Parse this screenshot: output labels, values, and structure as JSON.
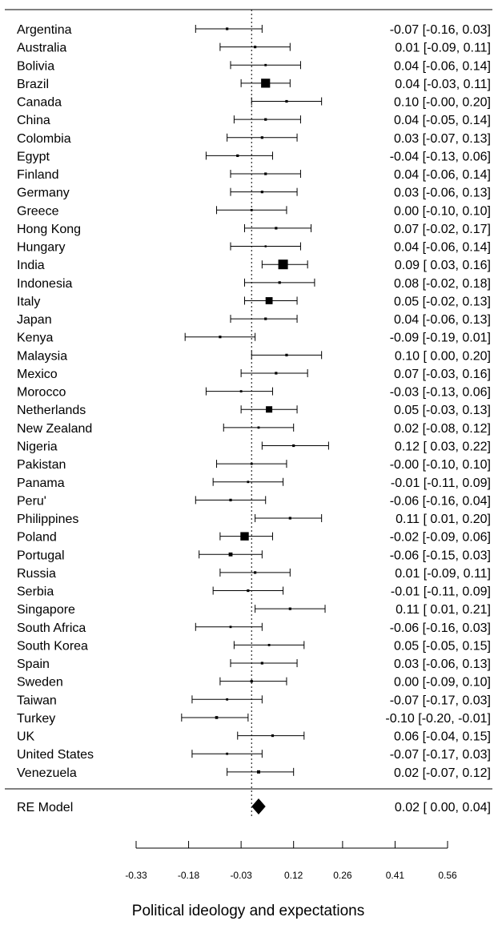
{
  "chart_data": {
    "type": "forest",
    "xlabel": "Political ideology and expectations",
    "xlim": [
      -0.33,
      0.56
    ],
    "xticks": [
      "-0.33",
      "-0.18",
      "-0.03",
      "0.12",
      "0.26",
      "0.41",
      "0.56"
    ],
    "xtick_values": [
      -0.33,
      -0.18,
      -0.03,
      0.12,
      0.26,
      0.41,
      0.56
    ],
    "reference_line": 0,
    "studies": [
      {
        "label": "Argentina",
        "est": -0.07,
        "lo": -0.16,
        "hi": 0.03,
        "text": "-0.07 [-0.16,  0.03]",
        "w": 0.8
      },
      {
        "label": "Australia",
        "est": 0.01,
        "lo": -0.09,
        "hi": 0.11,
        "text": "0.01 [-0.09,  0.11]",
        "w": 0.8
      },
      {
        "label": "Bolivia",
        "est": 0.04,
        "lo": -0.06,
        "hi": 0.14,
        "text": "0.04 [-0.06,  0.14]",
        "w": 0.7
      },
      {
        "label": "Brazil",
        "est": 0.04,
        "lo": -0.03,
        "hi": 0.11,
        "text": "0.04 [-0.03,  0.11]",
        "w": 2.8
      },
      {
        "label": "Canada",
        "est": 0.1,
        "lo": -0.0,
        "hi": 0.2,
        "text": "0.10 [-0.00,  0.20]",
        "w": 0.8
      },
      {
        "label": "China",
        "est": 0.04,
        "lo": -0.05,
        "hi": 0.14,
        "text": "0.04 [-0.05,  0.14]",
        "w": 0.8
      },
      {
        "label": "Colombia",
        "est": 0.03,
        "lo": -0.07,
        "hi": 0.13,
        "text": "0.03 [-0.07,  0.13]",
        "w": 0.8
      },
      {
        "label": "Egypt",
        "est": -0.04,
        "lo": -0.13,
        "hi": 0.06,
        "text": "-0.04 [-0.13,  0.06]",
        "w": 0.8
      },
      {
        "label": "Finland",
        "est": 0.04,
        "lo": -0.06,
        "hi": 0.14,
        "text": "0.04 [-0.06,  0.14]",
        "w": 0.8
      },
      {
        "label": "Germany",
        "est": 0.03,
        "lo": -0.06,
        "hi": 0.13,
        "text": "0.03 [-0.06,  0.13]",
        "w": 0.8
      },
      {
        "label": "Greece",
        "est": 0.0,
        "lo": -0.1,
        "hi": 0.1,
        "text": "0.00 [-0.10,  0.10]",
        "w": 0.7
      },
      {
        "label": "Hong Kong",
        "est": 0.07,
        "lo": -0.02,
        "hi": 0.17,
        "text": "0.07 [-0.02,  0.17]",
        "w": 0.8
      },
      {
        "label": "Hungary",
        "est": 0.04,
        "lo": -0.06,
        "hi": 0.14,
        "text": "0.04 [-0.06,  0.14]",
        "w": 0.6
      },
      {
        "label": "India",
        "est": 0.09,
        "lo": 0.03,
        "hi": 0.16,
        "text": "0.09 [ 0.03,  0.16]",
        "w": 3.0
      },
      {
        "label": "Indonesia",
        "est": 0.08,
        "lo": -0.02,
        "hi": 0.18,
        "text": "0.08 [-0.02,  0.18]",
        "w": 0.8
      },
      {
        "label": "Italy",
        "est": 0.05,
        "lo": -0.02,
        "hi": 0.13,
        "text": "0.05 [-0.02,  0.13]",
        "w": 2.2
      },
      {
        "label": "Japan",
        "est": 0.04,
        "lo": -0.06,
        "hi": 0.13,
        "text": "0.04 [-0.06,  0.13]",
        "w": 0.8
      },
      {
        "label": "Kenya",
        "est": -0.09,
        "lo": -0.19,
        "hi": 0.01,
        "text": "-0.09 [-0.19,  0.01]",
        "w": 0.8
      },
      {
        "label": "Malaysia",
        "est": 0.1,
        "lo": 0.0,
        "hi": 0.2,
        "text": "0.10 [ 0.00,  0.20]",
        "w": 0.8
      },
      {
        "label": "Mexico",
        "est": 0.07,
        "lo": -0.03,
        "hi": 0.16,
        "text": "0.07 [-0.03,  0.16]",
        "w": 0.8
      },
      {
        "label": "Morocco",
        "est": -0.03,
        "lo": -0.13,
        "hi": 0.06,
        "text": "-0.03 [-0.13,  0.06]",
        "w": 0.7
      },
      {
        "label": "Netherlands",
        "est": 0.05,
        "lo": -0.03,
        "hi": 0.13,
        "text": "0.05 [-0.03,  0.13]",
        "w": 2.0
      },
      {
        "label": "New Zealand",
        "est": 0.02,
        "lo": -0.08,
        "hi": 0.12,
        "text": "0.02 [-0.08,  0.12]",
        "w": 0.7
      },
      {
        "label": "Nigeria",
        "est": 0.12,
        "lo": 0.03,
        "hi": 0.22,
        "text": "0.12 [ 0.03,  0.22]",
        "w": 0.8
      },
      {
        "label": "Pakistan",
        "est": -0.0,
        "lo": -0.1,
        "hi": 0.1,
        "text": "-0.00 [-0.10,  0.10]",
        "w": 0.7
      },
      {
        "label": "Panama",
        "est": -0.01,
        "lo": -0.11,
        "hi": 0.09,
        "text": "-0.01 [-0.11,  0.09]",
        "w": 0.7
      },
      {
        "label": "Peru'",
        "est": -0.06,
        "lo": -0.16,
        "hi": 0.04,
        "text": "-0.06 [-0.16,  0.04]",
        "w": 0.8
      },
      {
        "label": "Philippines",
        "est": 0.11,
        "lo": 0.01,
        "hi": 0.2,
        "text": "0.11 [ 0.01,  0.20]",
        "w": 0.8
      },
      {
        "label": "Poland",
        "est": -0.02,
        "lo": -0.09,
        "hi": 0.06,
        "text": "-0.02 [-0.09,  0.06]",
        "w": 2.6
      },
      {
        "label": "Portugal",
        "est": -0.06,
        "lo": -0.15,
        "hi": 0.03,
        "text": "-0.06 [-0.15,  0.03]",
        "w": 1.2
      },
      {
        "label": "Russia",
        "est": 0.01,
        "lo": -0.09,
        "hi": 0.11,
        "text": "0.01 [-0.09,  0.11]",
        "w": 0.8
      },
      {
        "label": "Serbia",
        "est": -0.01,
        "lo": -0.11,
        "hi": 0.09,
        "text": "-0.01 [-0.11,  0.09]",
        "w": 0.8
      },
      {
        "label": "Singapore",
        "est": 0.11,
        "lo": 0.01,
        "hi": 0.21,
        "text": "0.11 [ 0.01,  0.21]",
        "w": 0.8
      },
      {
        "label": "South Africa",
        "est": -0.06,
        "lo": -0.16,
        "hi": 0.03,
        "text": "-0.06 [-0.16,  0.03]",
        "w": 0.7
      },
      {
        "label": "South Korea",
        "est": 0.05,
        "lo": -0.05,
        "hi": 0.15,
        "text": "0.05 [-0.05,  0.15]",
        "w": 0.7
      },
      {
        "label": "Spain",
        "est": 0.03,
        "lo": -0.06,
        "hi": 0.13,
        "text": "0.03 [-0.06,  0.13]",
        "w": 0.8
      },
      {
        "label": "Sweden",
        "est": 0.0,
        "lo": -0.09,
        "hi": 0.1,
        "text": "0.00 [-0.09,  0.10]",
        "w": 0.8
      },
      {
        "label": "Taiwan",
        "est": -0.07,
        "lo": -0.17,
        "hi": 0.03,
        "text": "-0.07 [-0.17,  0.03]",
        "w": 0.7
      },
      {
        "label": "Turkey",
        "est": -0.1,
        "lo": -0.2,
        "hi": -0.01,
        "text": "-0.10 [-0.20, -0.01]",
        "w": 0.9
      },
      {
        "label": "UK",
        "est": 0.06,
        "lo": -0.04,
        "hi": 0.15,
        "text": "0.06 [-0.04,  0.15]",
        "w": 0.8
      },
      {
        "label": "United States",
        "est": -0.07,
        "lo": -0.17,
        "hi": 0.03,
        "text": "-0.07 [-0.17,  0.03]",
        "w": 0.7
      },
      {
        "label": "Venezuela",
        "est": 0.02,
        "lo": -0.07,
        "hi": 0.12,
        "text": "0.02 [-0.07,  0.12]",
        "w": 1.0
      }
    ],
    "summary": {
      "label": "RE Model",
      "est": 0.02,
      "lo": 0.0,
      "hi": 0.04,
      "text": "0.02 [ 0.00,  0.04]"
    }
  }
}
